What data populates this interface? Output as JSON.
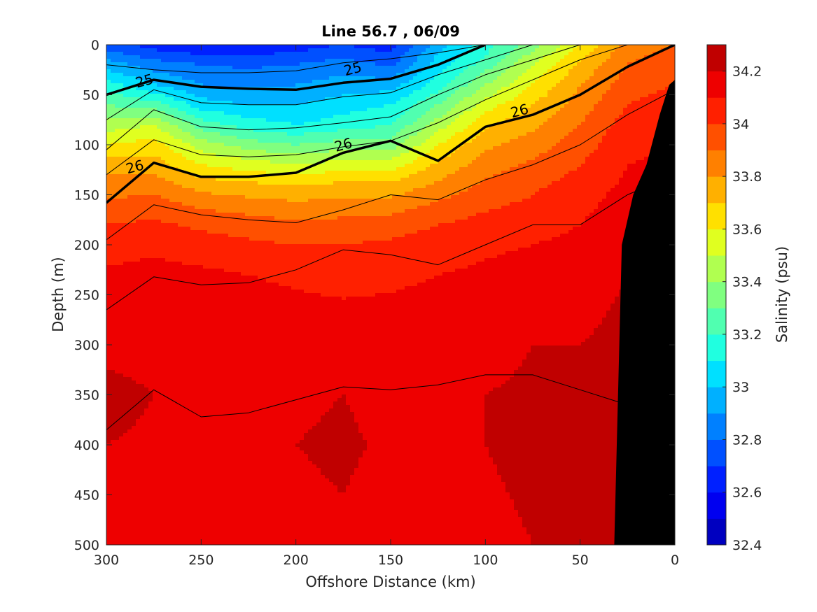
{
  "chart_data": {
    "type": "heatmap",
    "subtype": "filled-contour-section",
    "title": "Line 56.7 , 06/09",
    "xlabel": "Offshore Distance (km)",
    "ylabel": "Depth (m)",
    "xlim": [
      300,
      0
    ],
    "ylim": [
      500,
      0
    ],
    "x_direction": "reversed",
    "y_direction": "reversed",
    "xticks": [
      300,
      250,
      200,
      150,
      100,
      50,
      0
    ],
    "yticks": [
      0,
      50,
      100,
      150,
      200,
      250,
      300,
      350,
      400,
      450,
      500
    ],
    "grid": false,
    "colorbar": {
      "label": "Salinity (psu)",
      "range": [
        32.4,
        34.3
      ],
      "levels": [
        32.4,
        32.5,
        32.6,
        32.7,
        32.8,
        32.9,
        33.0,
        33.1,
        33.2,
        33.3,
        33.4,
        33.5,
        33.6,
        33.7,
        33.8,
        33.9,
        34.0,
        34.1,
        34.2,
        34.3
      ],
      "colors": [
        "#00008f",
        "#0000c0",
        "#0000f0",
        "#0020ff",
        "#0050ff",
        "#0080ff",
        "#00b0ff",
        "#00e0ff",
        "#20ffe0",
        "#50ffb0",
        "#80ff80",
        "#b0ff50",
        "#e0ff20",
        "#ffe000",
        "#ffb000",
        "#ff8000",
        "#ff5000",
        "#ff2000",
        "#ee0000",
        "#c00000",
        "#a00000"
      ],
      "tick_values": [
        32.4,
        32.6,
        32.8,
        33,
        33.2,
        33.4,
        33.6,
        33.8,
        34,
        34.2
      ],
      "tick_labels": [
        "32.4",
        "32.6",
        "32.8",
        "33",
        "33.2",
        "33.4",
        "33.6",
        "33.8",
        "34",
        "34.2"
      ]
    },
    "salinity_profiles": {
      "depths": [
        0,
        20,
        40,
        60,
        80,
        100,
        120,
        140,
        160,
        180,
        200,
        230,
        260,
        300,
        350,
        400,
        450,
        500
      ],
      "x": [
        300,
        275,
        250,
        225,
        200,
        175,
        150,
        125,
        100,
        75,
        50,
        25,
        0
      ],
      "values": [
        [
          32.75,
          32.95,
          33.15,
          33.3,
          33.45,
          33.6,
          33.75,
          33.85,
          33.92,
          34.0,
          34.05,
          34.12,
          34.15,
          34.18,
          34.22,
          34.2,
          34.18,
          34.15
        ],
        [
          32.65,
          32.85,
          33.0,
          33.25,
          33.5,
          33.65,
          33.75,
          33.85,
          33.95,
          34.02,
          34.08,
          34.13,
          34.16,
          34.18,
          34.2,
          34.19,
          34.17,
          34.16
        ],
        [
          32.6,
          32.8,
          32.9,
          33.05,
          33.25,
          33.45,
          33.6,
          33.75,
          33.88,
          33.98,
          34.05,
          34.12,
          34.15,
          34.17,
          34.18,
          34.16,
          34.14,
          34.15
        ],
        [
          32.6,
          32.78,
          32.88,
          33.0,
          33.15,
          33.35,
          33.55,
          33.72,
          33.85,
          33.95,
          34.02,
          34.1,
          34.14,
          34.16,
          34.18,
          34.18,
          34.16,
          34.15
        ],
        [
          32.65,
          32.8,
          32.9,
          33.0,
          33.1,
          33.3,
          33.5,
          33.7,
          33.82,
          33.92,
          34.0,
          34.08,
          34.12,
          34.16,
          34.19,
          34.2,
          34.19,
          34.17
        ],
        [
          32.7,
          32.85,
          32.95,
          33.05,
          33.15,
          33.35,
          33.55,
          33.72,
          33.85,
          33.93,
          34.0,
          34.06,
          34.11,
          34.15,
          34.2,
          34.21,
          34.2,
          34.18
        ],
        [
          32.65,
          32.78,
          32.95,
          33.1,
          33.2,
          33.35,
          33.55,
          33.72,
          33.85,
          33.95,
          34.02,
          34.07,
          34.12,
          34.15,
          34.18,
          34.19,
          34.18,
          34.17
        ],
        [
          32.95,
          33.05,
          33.15,
          33.3,
          33.45,
          33.6,
          33.72,
          33.82,
          33.92,
          34.0,
          34.05,
          34.1,
          34.14,
          34.17,
          34.18,
          34.18,
          34.17,
          34.17
        ],
        [
          33.15,
          33.25,
          33.4,
          33.55,
          33.68,
          33.78,
          33.85,
          33.92,
          33.98,
          34.04,
          34.08,
          34.12,
          34.16,
          34.18,
          34.2,
          34.2,
          34.19,
          34.18
        ],
        [
          33.35,
          33.5,
          33.6,
          33.7,
          33.78,
          33.85,
          33.92,
          33.98,
          34.02,
          34.06,
          34.1,
          34.14,
          34.18,
          34.2,
          34.21,
          34.22,
          34.21,
          34.2
        ],
        [
          33.6,
          33.72,
          33.8,
          33.85,
          33.9,
          33.95,
          34.0,
          34.04,
          34.07,
          34.1,
          34.13,
          34.16,
          34.18,
          34.2,
          34.22,
          34.22,
          34.22,
          34.22
        ],
        [
          33.85,
          33.9,
          33.95,
          34.0,
          34.05,
          34.08,
          34.1,
          34.12,
          34.15,
          34.17,
          34.18,
          34.2,
          34.21,
          34.22,
          34.23,
          34.24,
          34.25,
          34.26
        ],
        [
          33.9,
          33.95,
          34.0,
          34.05,
          34.08,
          34.1,
          34.12,
          34.14,
          34.16,
          34.18,
          34.2,
          34.21,
          34.22,
          34.23,
          34.24,
          34.25,
          34.26,
          34.27
        ]
      ]
    },
    "density_contours": {
      "x": [
        300,
        275,
        250,
        225,
        200,
        175,
        150,
        125,
        100,
        75,
        50,
        25,
        0
      ],
      "lines": [
        {
          "level": 24.5,
          "depths": [
            20,
            25,
            28,
            28,
            26,
            18,
            14,
            8,
            0,
            null,
            null,
            null,
            null
          ],
          "bold": false
        },
        {
          "level": 25,
          "depths": [
            50,
            35,
            42,
            44,
            45,
            38,
            34,
            20,
            0,
            null,
            null,
            null,
            null
          ],
          "bold": true
        },
        {
          "level": 25.25,
          "depths": [
            75,
            45,
            58,
            60,
            60,
            52,
            48,
            30,
            15,
            0,
            null,
            null,
            null
          ],
          "bold": false
        },
        {
          "level": 25.5,
          "depths": [
            105,
            65,
            82,
            85,
            83,
            78,
            72,
            50,
            30,
            15,
            0,
            null,
            null
          ],
          "bold": false
        },
        {
          "level": 25.75,
          "depths": [
            130,
            95,
            110,
            112,
            110,
            102,
            96,
            78,
            55,
            35,
            15,
            0,
            null
          ],
          "bold": false
        },
        {
          "level": 26,
          "depths": [
            158,
            118,
            132,
            132,
            128,
            108,
            96,
            116,
            82,
            70,
            50,
            22,
            0
          ],
          "bold": true
        },
        {
          "level": 26.25,
          "depths": [
            195,
            160,
            170,
            175,
            178,
            165,
            150,
            155,
            135,
            120,
            100,
            70,
            45
          ],
          "bold": false
        },
        {
          "level": 26.5,
          "depths": [
            265,
            232,
            240,
            238,
            225,
            205,
            210,
            220,
            200,
            180,
            180,
            150,
            130
          ],
          "bold": false
        },
        {
          "level": 26.75,
          "depths": [
            385,
            345,
            372,
            368,
            355,
            342,
            345,
            340,
            330,
            330,
            345,
            360,
            null
          ],
          "bold": false
        }
      ],
      "labels": [
        {
          "text": "25",
          "x": 280,
          "depth": 36
        },
        {
          "text": "25",
          "x": 170,
          "depth": 24
        },
        {
          "text": "26",
          "x": 285,
          "depth": 122
        },
        {
          "text": "26",
          "x": 175,
          "depth": 100
        },
        {
          "text": "26",
          "x": 82,
          "depth": 66
        }
      ]
    },
    "bathymetry": {
      "color": "#000000",
      "x": [
        32,
        28,
        22,
        15,
        8,
        3,
        0
      ],
      "depths": [
        500,
        200,
        150,
        120,
        70,
        40,
        35
      ]
    }
  }
}
